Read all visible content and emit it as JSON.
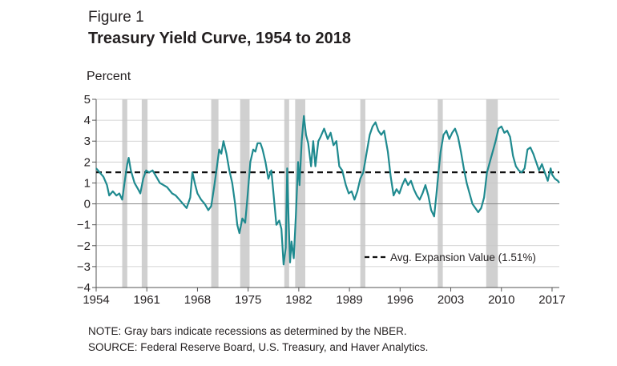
{
  "figure": {
    "label": "Figure 1",
    "title": "Treasury Yield Curve, 1954 to 2018",
    "y_unit": "Percent"
  },
  "notes": [
    "NOTE: Gray bars indicate recessions as determined by the NBER.",
    "SOURCE: Federal Reserve Board, U.S. Treasury, and Haver Analytics."
  ],
  "colors": {
    "series": "#1f8a8f",
    "recession": "#d0d0d0",
    "avg_line": "#111111",
    "axis": "#555555",
    "grid": "#c8c8c8"
  },
  "chart_data": {
    "type": "line",
    "title": "Treasury Yield Curve, 1954 to 2018",
    "ylabel": "Percent",
    "xlabel": "",
    "xlim": [
      1954,
      2018
    ],
    "ylim": [
      -4,
      5
    ],
    "x_ticks": [
      "1954",
      "1961",
      "1968",
      "1975",
      "1982",
      "1989",
      "1996",
      "2003",
      "2010",
      "2017"
    ],
    "y_ticks": [
      "5",
      "4",
      "3",
      "2",
      "1",
      "0",
      "−1",
      "−2",
      "−3",
      "−4"
    ],
    "grid": "horizontal",
    "legend_position": "bottom-right",
    "recessions": [
      [
        1957.6,
        1958.3
      ],
      [
        1960.3,
        1961.1
      ],
      [
        1969.9,
        1970.9
      ],
      [
        1973.9,
        1975.2
      ],
      [
        1980.0,
        1980.5
      ],
      [
        1981.5,
        1982.9
      ],
      [
        1990.5,
        1991.2
      ],
      [
        2001.2,
        2001.9
      ],
      [
        2007.9,
        2009.5
      ]
    ],
    "reference_line": {
      "label": "Avg. Expansion Value (1.51%)",
      "value": 1.51
    },
    "series": [
      {
        "values": [
          [
            1954.0,
            1.7
          ],
          [
            1954.5,
            1.5
          ],
          [
            1955.0,
            1.3
          ],
          [
            1955.5,
            0.9
          ],
          [
            1955.8,
            0.4
          ],
          [
            1956.3,
            0.6
          ],
          [
            1956.8,
            0.4
          ],
          [
            1957.2,
            0.5
          ],
          [
            1957.6,
            0.2
          ],
          [
            1958.0,
            1.2
          ],
          [
            1958.3,
            1.9
          ],
          [
            1958.5,
            2.2
          ],
          [
            1958.8,
            1.6
          ],
          [
            1959.3,
            1.0
          ],
          [
            1959.8,
            0.7
          ],
          [
            1960.1,
            0.5
          ],
          [
            1960.5,
            1.2
          ],
          [
            1960.9,
            1.6
          ],
          [
            1961.3,
            1.5
          ],
          [
            1961.8,
            1.6
          ],
          [
            1962.3,
            1.3
          ],
          [
            1962.8,
            1.0
          ],
          [
            1963.3,
            0.9
          ],
          [
            1963.8,
            0.8
          ],
          [
            1964.5,
            0.5
          ],
          [
            1965.0,
            0.4
          ],
          [
            1965.5,
            0.2
          ],
          [
            1966.0,
            0.0
          ],
          [
            1966.5,
            -0.2
          ],
          [
            1967.0,
            0.3
          ],
          [
            1967.3,
            1.5
          ],
          [
            1967.7,
            0.9
          ],
          [
            1968.0,
            0.5
          ],
          [
            1968.5,
            0.2
          ],
          [
            1969.0,
            0.0
          ],
          [
            1969.5,
            -0.3
          ],
          [
            1969.9,
            -0.1
          ],
          [
            1970.3,
            0.8
          ],
          [
            1970.7,
            1.8
          ],
          [
            1971.0,
            2.6
          ],
          [
            1971.3,
            2.4
          ],
          [
            1971.6,
            3.0
          ],
          [
            1972.0,
            2.4
          ],
          [
            1972.4,
            1.6
          ],
          [
            1972.8,
            1.0
          ],
          [
            1973.2,
            0.0
          ],
          [
            1973.5,
            -1.0
          ],
          [
            1973.8,
            -1.4
          ],
          [
            1974.2,
            -0.7
          ],
          [
            1974.6,
            -0.9
          ],
          [
            1974.9,
            0.3
          ],
          [
            1975.3,
            2.0
          ],
          [
            1975.7,
            2.6
          ],
          [
            1976.0,
            2.5
          ],
          [
            1976.3,
            2.9
          ],
          [
            1976.7,
            2.9
          ],
          [
            1977.0,
            2.6
          ],
          [
            1977.4,
            2.0
          ],
          [
            1977.8,
            1.2
          ],
          [
            1978.2,
            1.6
          ],
          [
            1978.5,
            0.5
          ],
          [
            1978.9,
            -1.0
          ],
          [
            1979.3,
            -0.8
          ],
          [
            1979.6,
            -1.2
          ],
          [
            1979.9,
            -2.9
          ],
          [
            1980.2,
            -2.1
          ],
          [
            1980.4,
            1.7
          ],
          [
            1980.6,
            -0.8
          ],
          [
            1980.8,
            -2.8
          ],
          [
            1981.0,
            -1.8
          ],
          [
            1981.3,
            -2.6
          ],
          [
            1981.6,
            -0.5
          ],
          [
            1981.9,
            2.0
          ],
          [
            1982.1,
            0.9
          ],
          [
            1982.4,
            3.0
          ],
          [
            1982.7,
            4.2
          ],
          [
            1983.0,
            3.3
          ],
          [
            1983.3,
            2.9
          ],
          [
            1983.7,
            1.8
          ],
          [
            1984.0,
            3.0
          ],
          [
            1984.3,
            1.8
          ],
          [
            1984.7,
            3.0
          ],
          [
            1985.0,
            3.2
          ],
          [
            1985.5,
            3.6
          ],
          [
            1986.0,
            3.1
          ],
          [
            1986.4,
            3.4
          ],
          [
            1986.8,
            2.8
          ],
          [
            1987.2,
            3.0
          ],
          [
            1987.6,
            1.8
          ],
          [
            1988.0,
            1.6
          ],
          [
            1988.5,
            0.9
          ],
          [
            1988.9,
            0.5
          ],
          [
            1989.3,
            0.6
          ],
          [
            1989.7,
            0.2
          ],
          [
            1990.1,
            0.6
          ],
          [
            1990.5,
            1.2
          ],
          [
            1990.9,
            1.5
          ],
          [
            1991.4,
            2.5
          ],
          [
            1991.8,
            3.3
          ],
          [
            1992.2,
            3.7
          ],
          [
            1992.6,
            3.9
          ],
          [
            1993.0,
            3.5
          ],
          [
            1993.4,
            3.3
          ],
          [
            1993.8,
            3.5
          ],
          [
            1994.3,
            2.5
          ],
          [
            1994.7,
            1.3
          ],
          [
            1995.1,
            0.4
          ],
          [
            1995.5,
            0.7
          ],
          [
            1995.9,
            0.5
          ],
          [
            1996.3,
            0.9
          ],
          [
            1996.7,
            1.2
          ],
          [
            1997.1,
            0.9
          ],
          [
            1997.5,
            1.1
          ],
          [
            1997.9,
            0.7
          ],
          [
            1998.3,
            0.4
          ],
          [
            1998.7,
            0.2
          ],
          [
            1999.1,
            0.5
          ],
          [
            1999.5,
            0.9
          ],
          [
            1999.9,
            0.4
          ],
          [
            2000.3,
            -0.3
          ],
          [
            2000.7,
            -0.6
          ],
          [
            2001.0,
            0.4
          ],
          [
            2001.3,
            1.5
          ],
          [
            2001.6,
            2.5
          ],
          [
            2002.0,
            3.3
          ],
          [
            2002.4,
            3.5
          ],
          [
            2002.8,
            3.1
          ],
          [
            2003.2,
            3.4
          ],
          [
            2003.6,
            3.6
          ],
          [
            2004.0,
            3.2
          ],
          [
            2004.4,
            2.5
          ],
          [
            2004.8,
            1.7
          ],
          [
            2005.2,
            1.0
          ],
          [
            2005.6,
            0.5
          ],
          [
            2006.0,
            0.0
          ],
          [
            2006.4,
            -0.2
          ],
          [
            2006.8,
            -0.4
          ],
          [
            2007.2,
            -0.2
          ],
          [
            2007.6,
            0.3
          ],
          [
            2008.0,
            1.5
          ],
          [
            2008.4,
            2.0
          ],
          [
            2008.8,
            2.5
          ],
          [
            2009.2,
            3.0
          ],
          [
            2009.6,
            3.6
          ],
          [
            2010.0,
            3.7
          ],
          [
            2010.4,
            3.4
          ],
          [
            2010.8,
            3.5
          ],
          [
            2011.2,
            3.2
          ],
          [
            2011.6,
            2.3
          ],
          [
            2012.0,
            1.8
          ],
          [
            2012.4,
            1.6
          ],
          [
            2012.8,
            1.5
          ],
          [
            2013.2,
            1.7
          ],
          [
            2013.6,
            2.6
          ],
          [
            2014.0,
            2.7
          ],
          [
            2014.4,
            2.4
          ],
          [
            2014.8,
            2.0
          ],
          [
            2015.2,
            1.6
          ],
          [
            2015.6,
            1.9
          ],
          [
            2016.0,
            1.5
          ],
          [
            2016.4,
            1.1
          ],
          [
            2016.8,
            1.7
          ],
          [
            2017.0,
            1.4
          ],
          [
            2017.4,
            1.2
          ],
          [
            2017.8,
            1.1
          ],
          [
            2018.0,
            1.0
          ]
        ]
      }
    ]
  }
}
